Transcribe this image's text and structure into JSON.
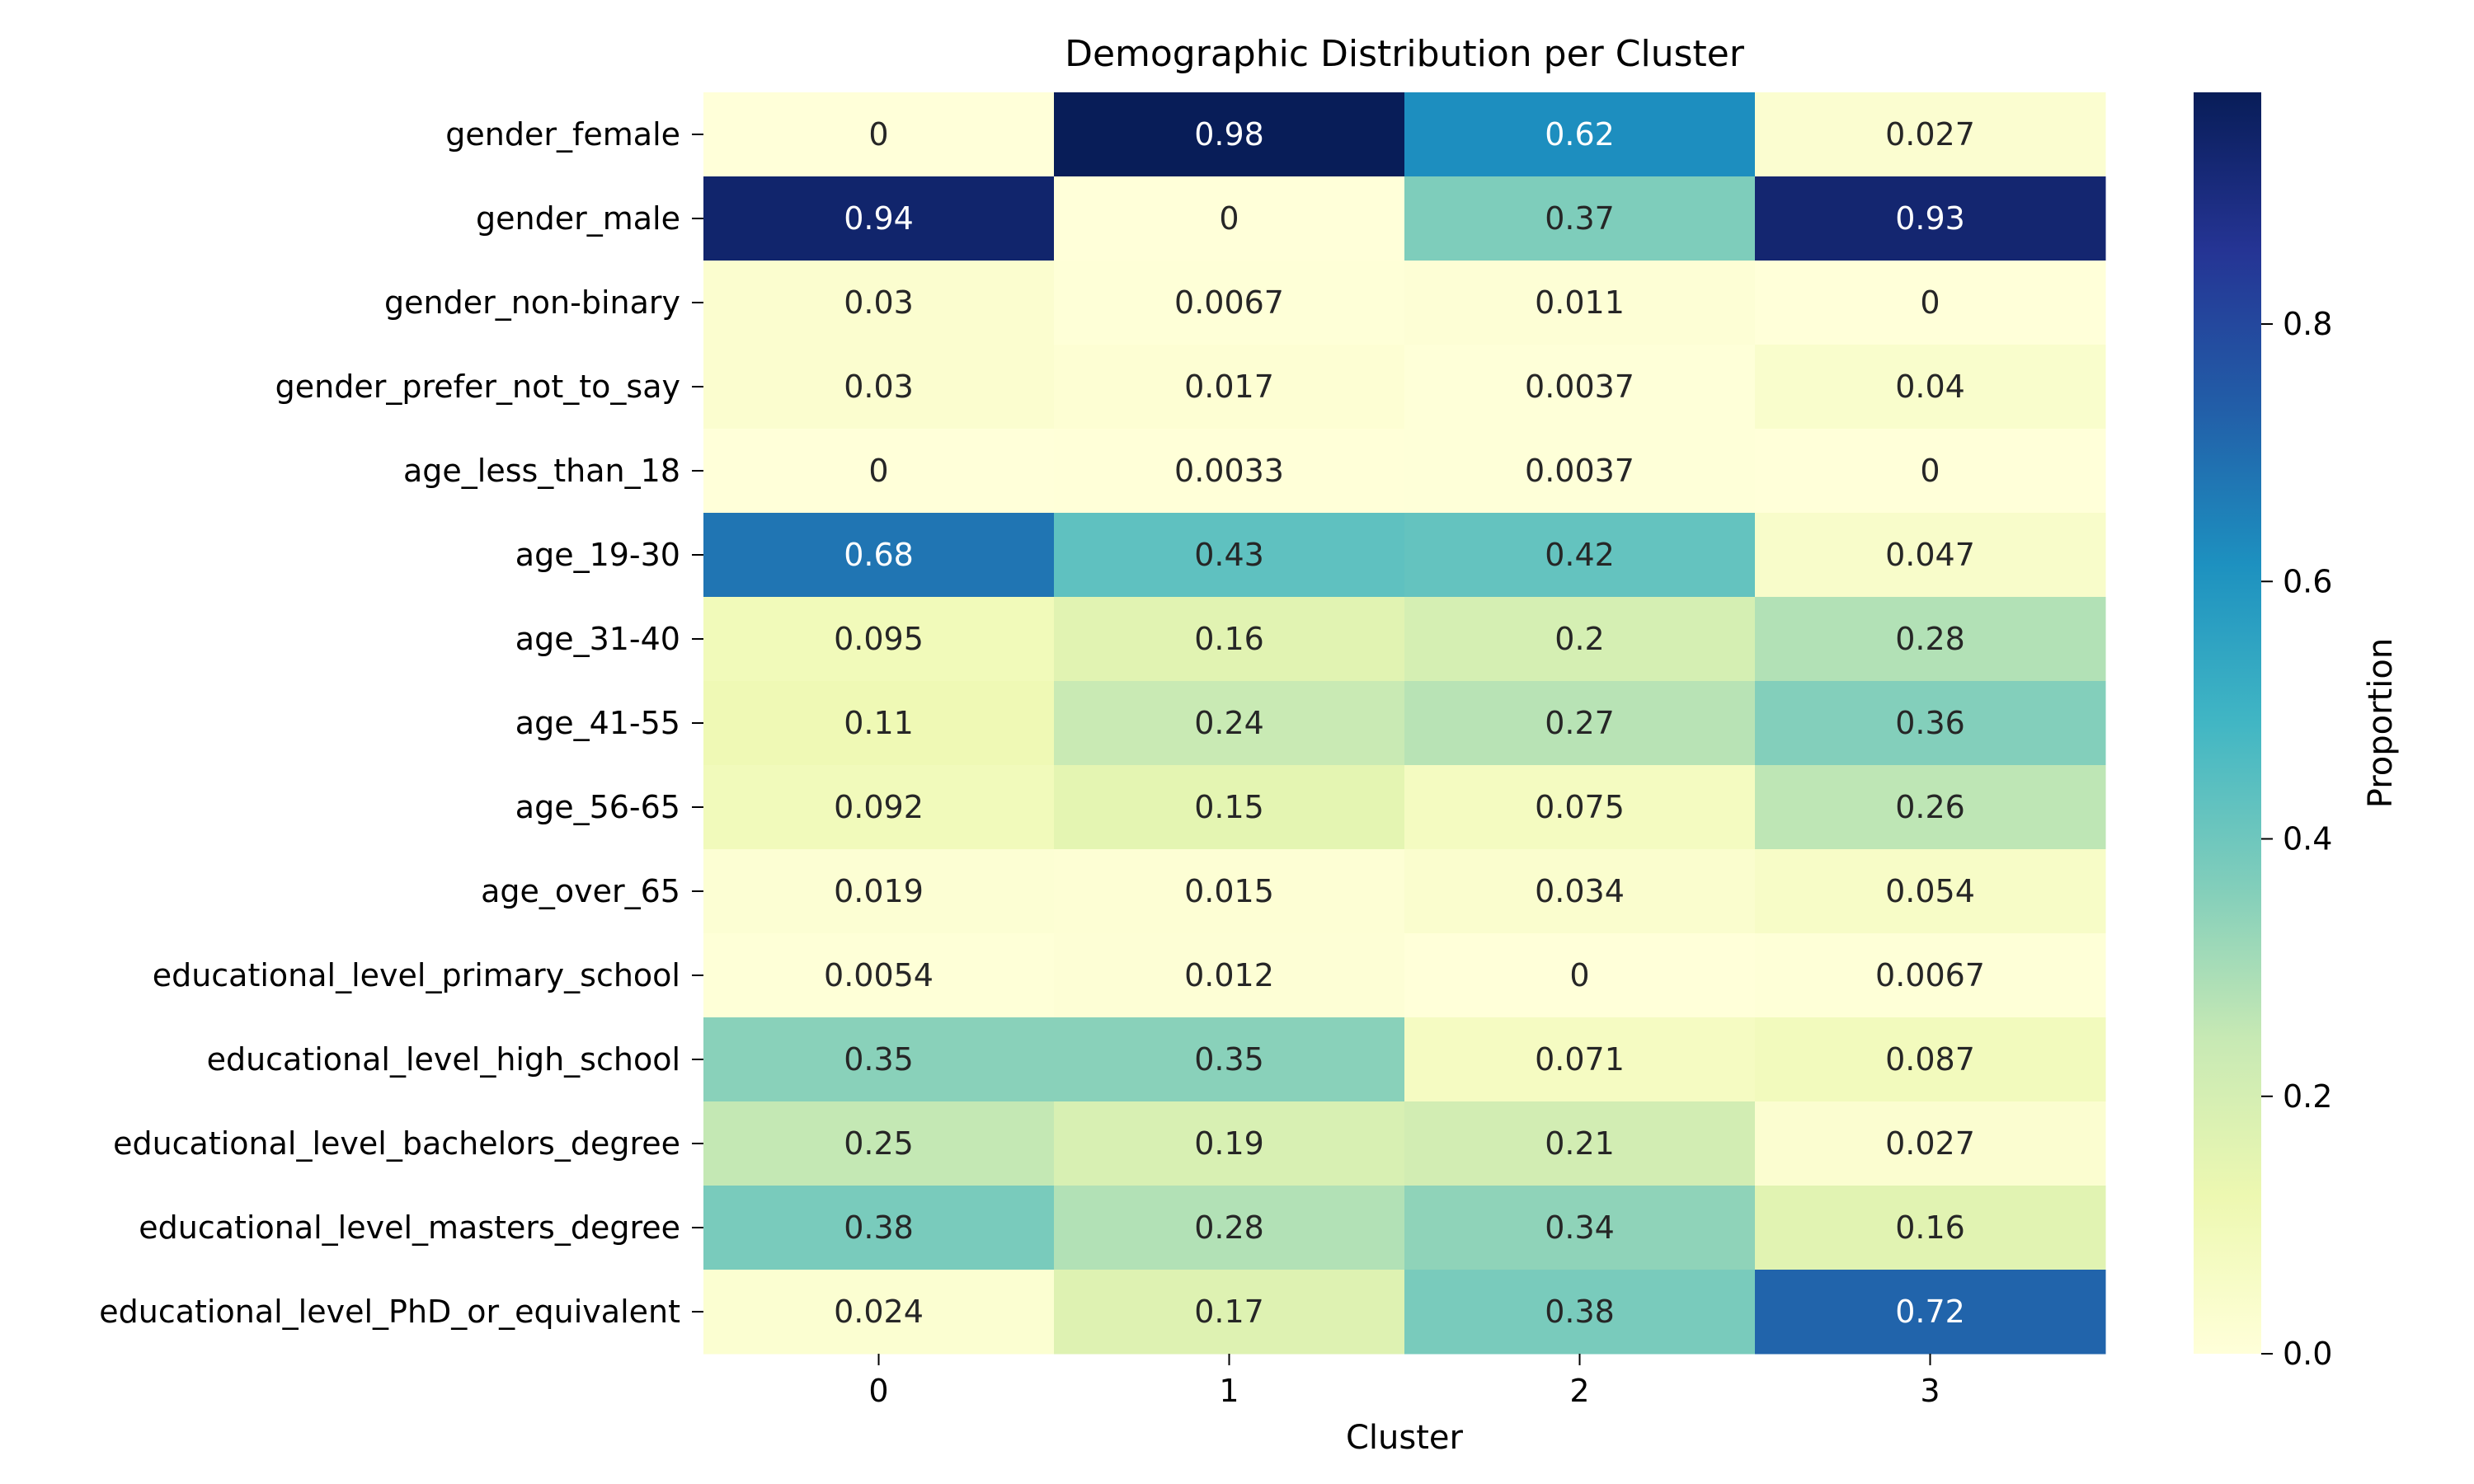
{
  "chart_data": {
    "type": "heatmap",
    "title": "Demographic Distribution per Cluster",
    "xlabel": "Cluster",
    "ylabel": "",
    "colorbar_label": "Proportion",
    "colormap": "YlGnBu",
    "vmin": 0,
    "vmax": 0.98,
    "colorbar_ticks": [
      0.0,
      0.2,
      0.4,
      0.6,
      0.8
    ],
    "colorbar_tick_labels": [
      "0.0",
      "0.2",
      "0.4",
      "0.6",
      "0.8"
    ],
    "columns": [
      "0",
      "1",
      "2",
      "3"
    ],
    "rows": [
      "gender_female",
      "gender_male",
      "gender_non-binary",
      "gender_prefer_not_to_say",
      "age_less_than_18",
      "age_19-30",
      "age_31-40",
      "age_41-55",
      "age_56-65",
      "age_over_65",
      "educational_level_primary_school",
      "educational_level_high_school",
      "educational_level_bachelors_degree",
      "educational_level_masters_degree",
      "educational_level_PhD_or_equivalent"
    ],
    "values": [
      [
        0,
        0.98,
        0.62,
        0.027
      ],
      [
        0.94,
        0,
        0.37,
        0.93
      ],
      [
        0.03,
        0.0067,
        0.011,
        0
      ],
      [
        0.03,
        0.017,
        0.0037,
        0.04
      ],
      [
        0,
        0.0033,
        0.0037,
        0
      ],
      [
        0.68,
        0.43,
        0.42,
        0.047
      ],
      [
        0.095,
        0.16,
        0.2,
        0.28
      ],
      [
        0.11,
        0.24,
        0.27,
        0.36
      ],
      [
        0.092,
        0.15,
        0.075,
        0.26
      ],
      [
        0.019,
        0.015,
        0.034,
        0.054
      ],
      [
        0.0054,
        0.012,
        0,
        0.0067
      ],
      [
        0.35,
        0.35,
        0.071,
        0.087
      ],
      [
        0.25,
        0.19,
        0.21,
        0.027
      ],
      [
        0.38,
        0.28,
        0.34,
        0.16
      ],
      [
        0.024,
        0.17,
        0.38,
        0.72
      ]
    ],
    "value_labels": [
      [
        "0",
        "0.98",
        "0.62",
        "0.027"
      ],
      [
        "0.94",
        "0",
        "0.37",
        "0.93"
      ],
      [
        "0.03",
        "0.0067",
        "0.011",
        "0"
      ],
      [
        "0.03",
        "0.017",
        "0.0037",
        "0.04"
      ],
      [
        "0",
        "0.0033",
        "0.0037",
        "0"
      ],
      [
        "0.68",
        "0.43",
        "0.42",
        "0.047"
      ],
      [
        "0.095",
        "0.16",
        "0.2",
        "0.28"
      ],
      [
        "0.11",
        "0.24",
        "0.27",
        "0.36"
      ],
      [
        "0.092",
        "0.15",
        "0.075",
        "0.26"
      ],
      [
        "0.019",
        "0.015",
        "0.034",
        "0.054"
      ],
      [
        "0.0054",
        "0.012",
        "0",
        "0.0067"
      ],
      [
        "0.35",
        "0.35",
        "0.071",
        "0.087"
      ],
      [
        "0.25",
        "0.19",
        "0.21",
        "0.027"
      ],
      [
        "0.38",
        "0.28",
        "0.34",
        "0.16"
      ],
      [
        "0.024",
        "0.17",
        "0.38",
        "0.72"
      ]
    ]
  }
}
